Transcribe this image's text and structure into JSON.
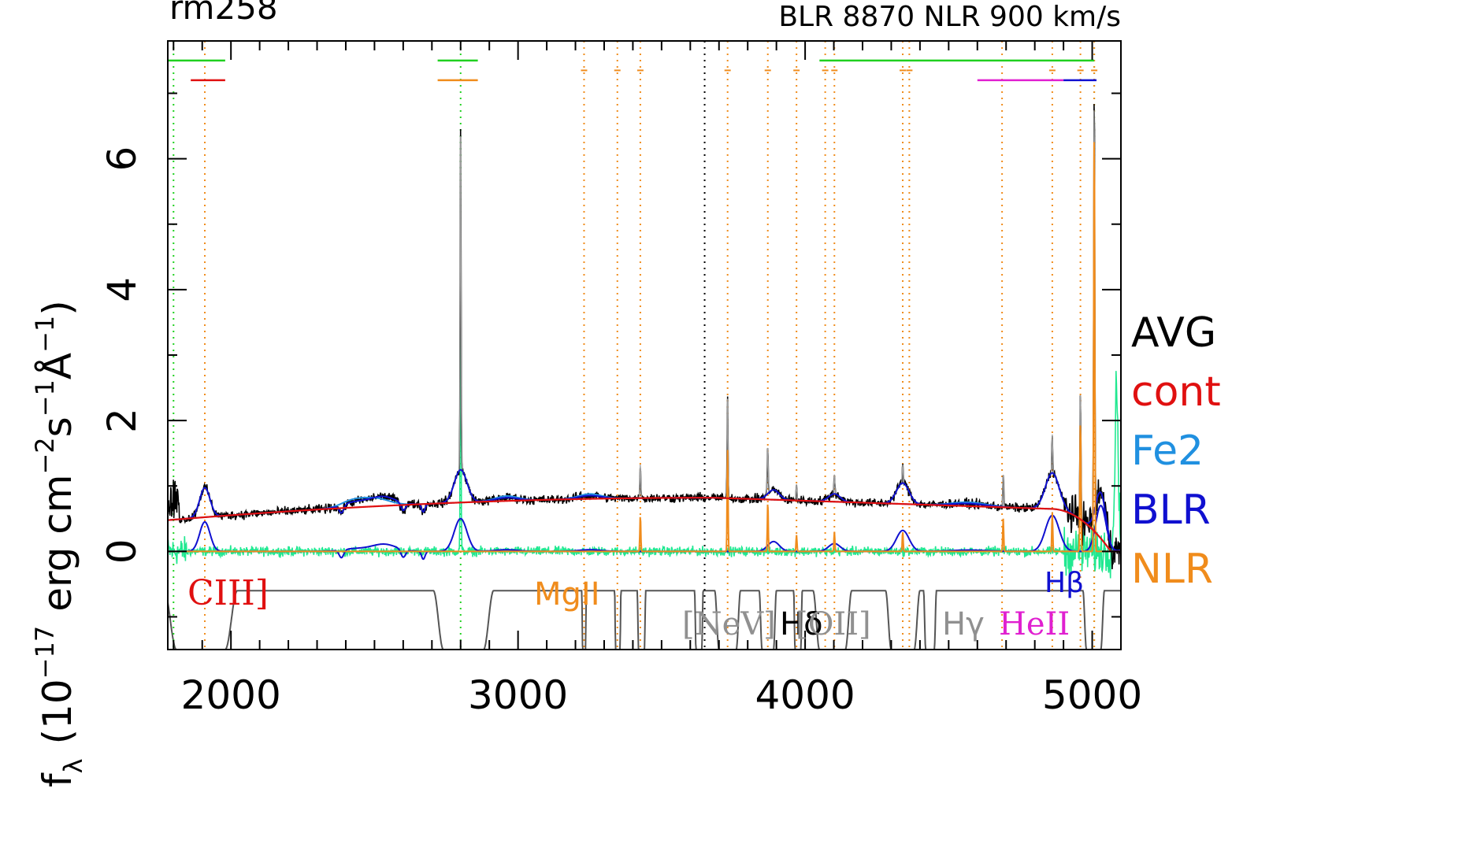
{
  "chart_data": {
    "type": "line",
    "title_left": "rm258",
    "title_right": "BLR 8870 NLR 900 km/s",
    "ylabel_parts": {
      "f": "f",
      "lambda": "λ",
      "pre": "(10",
      "exp1": "−17",
      "erg": "erg cm",
      "exp2": "−2",
      "s": "s",
      "exp3": "−1",
      "A": "Å",
      "exp4": "−1",
      "close": ")"
    },
    "x_ticks": [
      "2000",
      "3000",
      "4000",
      "5000"
    ],
    "y_ticks": [
      "0",
      "2",
      "4",
      "6"
    ],
    "xlim": [
      1780,
      5100
    ],
    "ylim": [
      -1.5,
      7.8
    ],
    "legend": [
      {
        "label": "AVG",
        "color": "#000000"
      },
      {
        "label": "cont",
        "color": "#e01010"
      },
      {
        "label": "Fe2",
        "color": "#2090e0"
      },
      {
        "label": "BLR",
        "color": "#1010d0"
      },
      {
        "label": "NLR",
        "color": "#f08c1c"
      }
    ],
    "line_labels": [
      {
        "text": "CIII]",
        "color": "#e01010"
      },
      {
        "text": "MgII",
        "color": "#f08c1c"
      },
      {
        "text": "[NeV]",
        "color": "#909090"
      },
      {
        "text": "Hδ",
        "color": "#000000"
      },
      {
        "text": "[OII]",
        "color": "#909090"
      },
      {
        "text": "Hγ",
        "color": "#909090"
      },
      {
        "text": "HeII",
        "color": "#e020d0"
      },
      {
        "text": "Hβ",
        "color": "#1010d0"
      }
    ],
    "green_lines": [
      1800,
      2800,
      4340,
      5007
    ],
    "orange_lines": [
      1909,
      3230,
      3346,
      3426,
      3730,
      3870,
      3970,
      4070,
      4102,
      4340,
      4363,
      4686,
      4861,
      4959,
      5007
    ],
    "black_line": 3650,
    "series_colors": {
      "avg": "#000000",
      "cont": "#e01010",
      "fe2": "#2090e0",
      "blr": "#1010d0",
      "nlr": "#f08c1c",
      "resid": "#20e890",
      "window": "#555555"
    }
  }
}
